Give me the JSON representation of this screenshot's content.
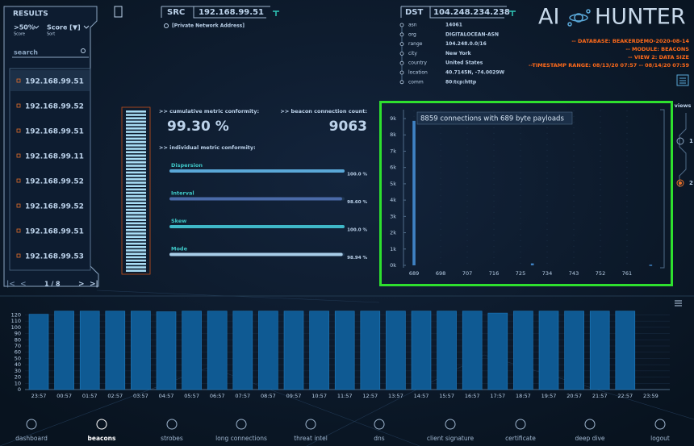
{
  "results": {
    "title": "RESULTS",
    "filters": [
      {
        "value": ">50%",
        "caption": "Score"
      },
      {
        "value": "Score [▼]",
        "caption": "Sort"
      }
    ],
    "search": "search",
    "items": [
      "192.168.99.51",
      "192.168.99.52",
      "192.168.99.51",
      "192.168.99.11",
      "192.168.99.52",
      "192.168.99.52",
      "192.168.99.51",
      "192.168.99.53"
    ],
    "pager": "1 / 8"
  },
  "src": {
    "label": "SRC",
    "ip": "192.168.99.51",
    "note": "[Private Network Address]"
  },
  "dst": {
    "label": "DST",
    "ip": "104.248.234.238",
    "fields": [
      {
        "key": "asn",
        "value": "14061"
      },
      {
        "key": "org",
        "value": "DIGITALOCEAN-ASN"
      },
      {
        "key": "range",
        "value": "104.248.0.0/16"
      },
      {
        "key": "city",
        "value": "New York"
      },
      {
        "key": "country",
        "value": "United States"
      },
      {
        "key": "location",
        "value": "40.7145N, -74.0029W"
      },
      {
        "key": "comm",
        "value": "80:tcp:http"
      }
    ]
  },
  "logo": {
    "left": "AI",
    "right": "HUNTER"
  },
  "info": [
    "-- DATABASE: BEAKERDEMO-2020-08-14",
    "-- MODULE: BEACONS",
    "-- VIEW 2: DATA SIZE",
    "--TIMESTAMP RANGE: 08/13/20 07:57 -- 08/14/20 07:59"
  ],
  "metrics": {
    "cumulative_label": ">> cumulative metric conformity:",
    "cumulative_value": "99.30 %",
    "count_label": ">> beacon connection count:",
    "count_value": "9063",
    "individual_label": ">> individual metric conformity:",
    "xlim": [
      0,
      100
    ],
    "items": [
      {
        "name": "Dispersion",
        "value": 100.0,
        "value_label": "100.0 %",
        "color": "#5aa8d8"
      },
      {
        "name": "Interval",
        "value": 98.6,
        "value_label": "98.60 %",
        "color": "#4a6aa8"
      },
      {
        "name": "Skew",
        "value": 100.0,
        "value_label": "100.0 %",
        "color": "#3fb8c8"
      },
      {
        "name": "Mode",
        "value": 98.94,
        "value_label": "98.94 %",
        "color": "#a8cde8"
      }
    ]
  },
  "size_chart": {
    "type": "bar",
    "annotation": "8859 connections with 689 byte payloads",
    "x": [
      689,
      729,
      769
    ],
    "values": [
      8859,
      120,
      40
    ],
    "xlim": [
      687,
      773
    ],
    "ylim": [
      0,
      9500
    ],
    "xticks": [
      689,
      698,
      707,
      716,
      725,
      734,
      743,
      752,
      761
    ],
    "yticks": [
      {
        "value": 0,
        "label": "0k"
      },
      {
        "value": 1000,
        "label": "1k"
      },
      {
        "value": 2000,
        "label": "2k"
      },
      {
        "value": 3000,
        "label": "3k"
      },
      {
        "value": 4000,
        "label": "4k"
      },
      {
        "value": 5000,
        "label": "5k"
      },
      {
        "value": 6000,
        "label": "6k"
      },
      {
        "value": 7000,
        "label": "7k"
      },
      {
        "value": 8000,
        "label": "8k"
      },
      {
        "value": 9000,
        "label": "9k"
      }
    ],
    "color": "#3f82c4"
  },
  "hourly_chart": {
    "type": "bar",
    "categories": [
      "23:57",
      "00:57",
      "01:57",
      "02:57",
      "03:57",
      "04:57",
      "05:57",
      "06:57",
      "07:57",
      "08:57",
      "09:57",
      "10:57",
      "11:57",
      "12:57",
      "13:57",
      "14:57",
      "15:57",
      "16:57",
      "17:57",
      "18:57",
      "19:57",
      "20:57",
      "21:57",
      "22:57",
      "23:59"
    ],
    "values": [
      121,
      126,
      126,
      126,
      126,
      125,
      126,
      126,
      126,
      126,
      126,
      126,
      126,
      126,
      126,
      126,
      126,
      126,
      123,
      126,
      126,
      126,
      126,
      126,
      null
    ],
    "ylim": [
      0,
      140
    ],
    "yticks": [
      0,
      10,
      20,
      30,
      40,
      50,
      60,
      70,
      80,
      90,
      100,
      110,
      120
    ],
    "grid": true,
    "color": "#0f5a93"
  },
  "views": {
    "label": "views",
    "options": [
      "1",
      "2"
    ]
  },
  "nav": [
    "dashboard",
    "beacons",
    "strobes",
    "long connections",
    "threat intel",
    "dns",
    "client signature",
    "certificate",
    "deep dive",
    "logout"
  ]
}
